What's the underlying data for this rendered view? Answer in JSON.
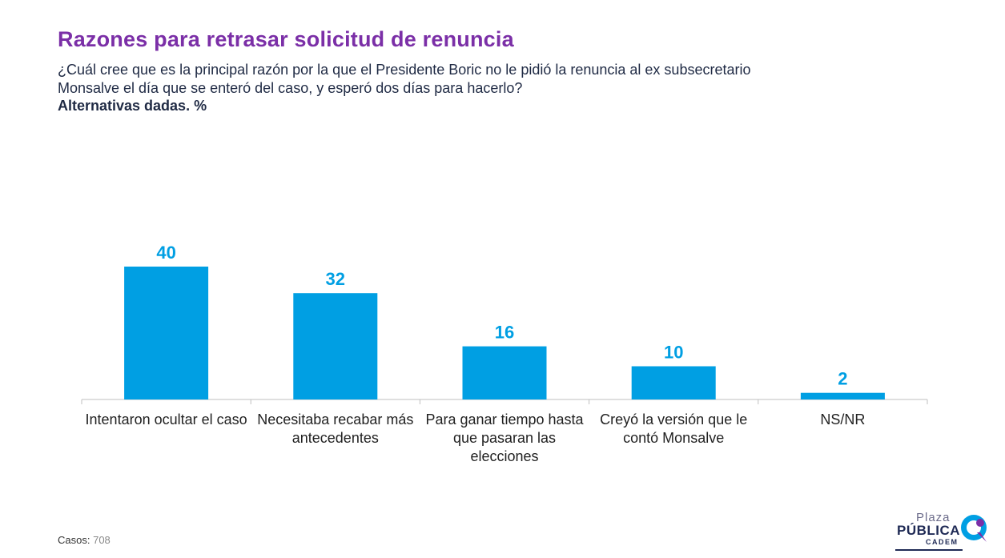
{
  "header": {
    "title": "Razones para retrasar solicitud de renuncia",
    "question": "¿Cuál cree que es la principal razón por la que el Presidente Boric no le pidió la renuncia al ex subsecretario Monsalve el día que se enteró del caso, y esperó dos días para hacerlo?",
    "subtitle": "Alternativas dadas. %"
  },
  "chart_data": {
    "type": "bar",
    "categories": [
      "Intentaron ocultar el caso",
      "Necesitaba recabar más antecedentes",
      "Para ganar tiempo hasta que pasaran las elecciones",
      "Creyó la versión que le contó Monsalve",
      "NS/NR"
    ],
    "values": [
      40,
      32,
      16,
      10,
      2
    ],
    "ylim": [
      0,
      40
    ],
    "grid": false,
    "bar_color": "#009fe3",
    "label_color": "#009fe3"
  },
  "footer": {
    "cases_label": "Casos",
    "cases_value": "708"
  },
  "logo": {
    "plaza": "Plaza",
    "publica": "PÚBLICA",
    "cadem": "CADEM"
  }
}
